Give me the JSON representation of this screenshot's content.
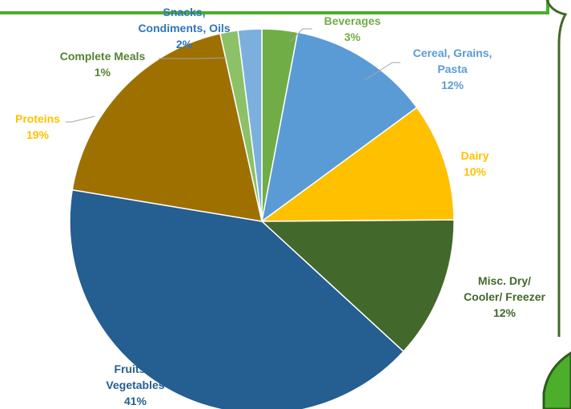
{
  "chart_data": {
    "type": "pie",
    "title": "",
    "start_angle_deg": 0,
    "direction": "clockwise",
    "slices": [
      {
        "label_lines": [
          "Beverages"
        ],
        "pct_text": "3%",
        "value": 3,
        "color": "#70ad47",
        "label_color": "#70ad47"
      },
      {
        "label_lines": [
          "Cereal, Grains,",
          "Pasta"
        ],
        "pct_text": "12%",
        "value": 12,
        "color": "#5b9bd5",
        "label_color": "#5b9bd5"
      },
      {
        "label_lines": [
          "Dairy"
        ],
        "pct_text": "10%",
        "value": 10,
        "color": "#ffc000",
        "label_color": "#ffc000"
      },
      {
        "label_lines": [
          "Misc. Dry/",
          "Cooler/ Freezer"
        ],
        "pct_text": "12%",
        "value": 12,
        "color": "#43682b",
        "label_color": "#43682b"
      },
      {
        "label_lines": [
          "Fruits &",
          "Vegetables"
        ],
        "pct_text": "41%",
        "value": 41,
        "color": "#255e91",
        "label_color": "#255e91"
      },
      {
        "label_lines": [
          "Proteins"
        ],
        "pct_text": "19%",
        "value": 19,
        "color": "#9e7000",
        "label_color": "#ffc000"
      },
      {
        "label_lines": [
          "Complete Meals"
        ],
        "pct_text": "1%",
        "value": 1.5,
        "color": "#8cc168",
        "label_color": "#548235"
      },
      {
        "label_lines": [
          "Snacks,",
          "Condiments, Oils"
        ],
        "pct_text": "2%",
        "value": 2,
        "color": "#7cafdd",
        "label_color": "#2e75b6"
      }
    ]
  },
  "decor": {
    "frame_color": "#43682b",
    "accent_green": "#4cae2b"
  }
}
